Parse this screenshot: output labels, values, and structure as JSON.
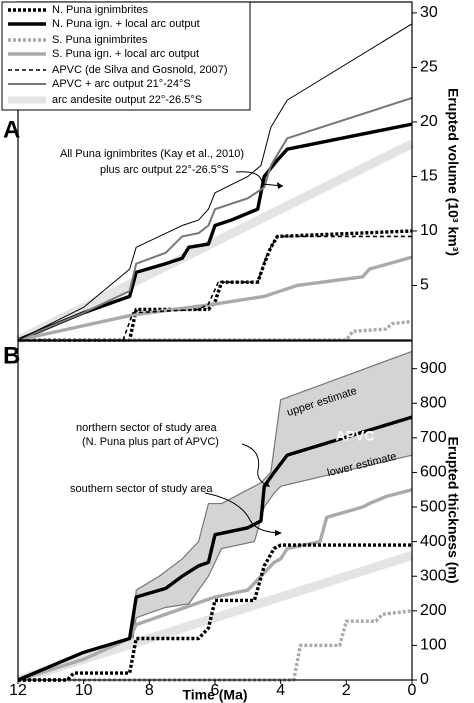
{
  "chart_data": [
    {
      "type": "line",
      "panel": "A",
      "ylabel": "Erupted volume (10³ km³)",
      "xlim": [
        12,
        0
      ],
      "ylim": [
        0,
        31
      ],
      "yticks": [
        5,
        10,
        15,
        20,
        25,
        30
      ],
      "legend": "upper left",
      "annotations": [
        "All Puna ignimbrites (Kay et al., 2010)",
        "plus arc output 22°-26.5°S"
      ],
      "series": [
        {
          "name": "N. Puna ignimbrites",
          "color": "#000000",
          "style": "dotted",
          "weight": "thick",
          "x": [
            12,
            8.6,
            8.4,
            6.2,
            6.0,
            5.8,
            4.7,
            4.5,
            4.3,
            4.1,
            0
          ],
          "values": [
            0,
            0,
            2.8,
            2.8,
            3.5,
            5.3,
            5.3,
            7,
            8.5,
            9.5,
            10
          ]
        },
        {
          "name": "N. Puna ign. + local arc output",
          "color": "#000000",
          "style": "solid",
          "weight": "thick",
          "x": [
            12,
            10,
            8.6,
            8.4,
            7.5,
            7,
            6.8,
            6.2,
            6.0,
            5.5,
            4.7,
            4.5,
            4.1,
            3.8,
            0
          ],
          "values": [
            0,
            2.5,
            4,
            6.2,
            7,
            7.5,
            8.5,
            8.8,
            10.5,
            11,
            12,
            15,
            16.5,
            17.5,
            19.8
          ]
        },
        {
          "name": "S. Puna ignimbrites",
          "color": "#aaaaaa",
          "style": "dotted",
          "weight": "thick",
          "x": [
            12,
            2.0,
            1.8,
            0.8,
            0.6,
            0
          ],
          "values": [
            0,
            0,
            0.8,
            1.0,
            1.5,
            1.7
          ]
        },
        {
          "name": "S. Puna ign. + local arc output",
          "color": "#aaaaaa",
          "style": "solid",
          "weight": "thick",
          "x": [
            12,
            8.5,
            6,
            4.5,
            4,
            3.5,
            1.5,
            1.3,
            0
          ],
          "values": [
            0,
            2.3,
            3.3,
            4,
            4.5,
            5,
            5.8,
            6.5,
            7.6
          ]
        },
        {
          "name": "APVC (de Silva and Gosnold, 2007)",
          "color": "#000000",
          "style": "dashed",
          "weight": "thin",
          "x": [
            12,
            8.8,
            8.5,
            6.5,
            6.2,
            5.9,
            4.7,
            4.4,
            4.1,
            0
          ],
          "values": [
            0,
            0,
            2.5,
            2.8,
            3.3,
            5.3,
            5.3,
            8,
            9.5,
            9.5
          ]
        },
        {
          "name": "APVC + arc output 21°-24°S",
          "color": "#777777",
          "style": "solid",
          "weight": "medium",
          "x": [
            12,
            10,
            8.6,
            8.4,
            7.5,
            7,
            6.5,
            6.2,
            6.0,
            5,
            4.5,
            4.3,
            4,
            3.8,
            0
          ],
          "values": [
            0,
            2.5,
            4.5,
            7,
            8,
            9.5,
            9.8,
            10.5,
            12,
            13,
            14,
            16,
            17.5,
            18.5,
            22.2
          ]
        },
        {
          "name": "arc andesite output 22°-26.5°S",
          "color": "#e4e4e4",
          "style": "band",
          "weight": "band",
          "x": [
            12,
            0
          ],
          "values": [
            0,
            18
          ]
        },
        {
          "color": "#000000",
          "style": "solid",
          "weight": "hair",
          "x": [
            12,
            10,
            8.6,
            8.4,
            7,
            6.5,
            6.2,
            6.0,
            5,
            4.6,
            4.3,
            4,
            3.8,
            0
          ],
          "values": [
            0,
            3,
            6.5,
            8.5,
            10.5,
            11,
            12,
            13.5,
            15,
            16,
            19.5,
            21,
            22,
            29
          ]
        }
      ]
    },
    {
      "type": "line",
      "panel": "B",
      "ylabel": "Erupted thickness (m)",
      "xlabel": "Time (Ma)",
      "xlim": [
        12,
        0
      ],
      "xticks": [
        12,
        10,
        8,
        6,
        4,
        2,
        0
      ],
      "ylim": [
        0,
        980
      ],
      "yticks": [
        0,
        100,
        200,
        300,
        400,
        500,
        600,
        700,
        800,
        900
      ],
      "annotations": [
        "upper estimate",
        "APVC",
        "lower estimate",
        "northern sector of study area",
        "(N. Puna plus part of APVC)",
        "southern sector of study area"
      ],
      "envelope": {
        "color": "#d4d4d4",
        "edge": "#777777",
        "upper": {
          "x": [
            8.5,
            8.4,
            7.7,
            7,
            6.5,
            6.2,
            5.8,
            4.6,
            4.3,
            4.0,
            0
          ],
          "values": [
            120,
            260,
            300,
            350,
            400,
            510,
            510,
            570,
            600,
            810,
            950
          ]
        },
        "lower": {
          "x": [
            8.5,
            8.4,
            7.5,
            6.8,
            6.2,
            5.8,
            4.8,
            4.5,
            4.2,
            4.0,
            0
          ],
          "values": [
            120,
            180,
            210,
            220,
            300,
            380,
            400,
            500,
            540,
            560,
            650
          ]
        }
      },
      "series": [
        {
          "color": "#e4e4e4",
          "style": "band",
          "weight": "band",
          "x": [
            12,
            0
          ],
          "values": [
            0,
            360
          ]
        },
        {
          "color": "#aaaaaa",
          "style": "dotted",
          "weight": "thick",
          "x": [
            12,
            3.6,
            3.4,
            2.2,
            2.0,
            1.1,
            0.9,
            0
          ],
          "values": [
            0,
            0,
            100,
            100,
            170,
            170,
            190,
            200
          ]
        },
        {
          "color": "#aaaaaa",
          "style": "solid",
          "weight": "thick",
          "x": [
            12,
            10,
            8.6,
            8.4,
            6,
            5,
            4.5,
            4.2,
            4,
            3.8,
            2.8,
            2.6,
            1.5,
            1.3,
            0.8,
            0
          ],
          "values": [
            0,
            60,
            120,
            160,
            240,
            260,
            310,
            340,
            350,
            380,
            400,
            470,
            500,
            510,
            530,
            550
          ]
        },
        {
          "color": "#000000",
          "style": "dotted",
          "weight": "thick",
          "x": [
            12,
            10.5,
            10.3,
            8.6,
            8.4,
            6.5,
            6.2,
            6.0,
            4.8,
            4.5,
            4.2,
            4.0,
            0
          ],
          "values": [
            0,
            0,
            20,
            20,
            120,
            120,
            150,
            230,
            230,
            330,
            380,
            390,
            390
          ]
        },
        {
          "color": "#000000",
          "style": "solid",
          "weight": "thick",
          "x": [
            12,
            10.5,
            10,
            8.6,
            8.4,
            7.5,
            7,
            6.5,
            6.2,
            6.0,
            5,
            4.6,
            4.5,
            4.2,
            3.8,
            0
          ],
          "values": [
            0,
            60,
            80,
            120,
            240,
            265,
            300,
            330,
            340,
            420,
            440,
            460,
            560,
            600,
            650,
            760
          ]
        }
      ]
    }
  ]
}
